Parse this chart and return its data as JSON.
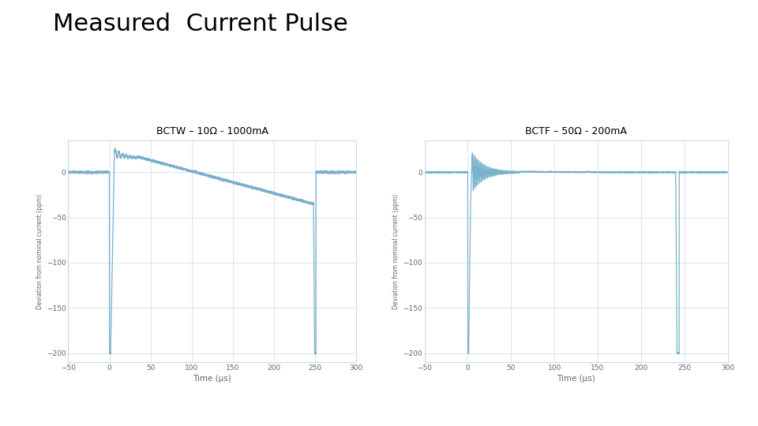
{
  "title": "Measured  Current Pulse",
  "title_fontsize": 22,
  "subplot1_title": "BCTW – 10Ω - 1000mA",
  "subplot2_title": "BCTF – 50Ω - 200mA",
  "subplot_title_fontsize": 9,
  "xlabel": "Time (μs)",
  "ylabel": "Deviation from nominal current (ppm)",
  "xlim": [
    -50,
    300
  ],
  "ylim": [
    -210,
    35
  ],
  "xticks": [
    -50,
    0,
    50,
    100,
    150,
    200,
    250,
    300
  ],
  "yticks": [
    0,
    -50,
    -100,
    -150,
    -200
  ],
  "line_color": "#7ab0cc",
  "line_width": 0.9,
  "grid_color": "#b8d4e8",
  "grid_alpha": 0.8,
  "background_color": "#ffffff"
}
